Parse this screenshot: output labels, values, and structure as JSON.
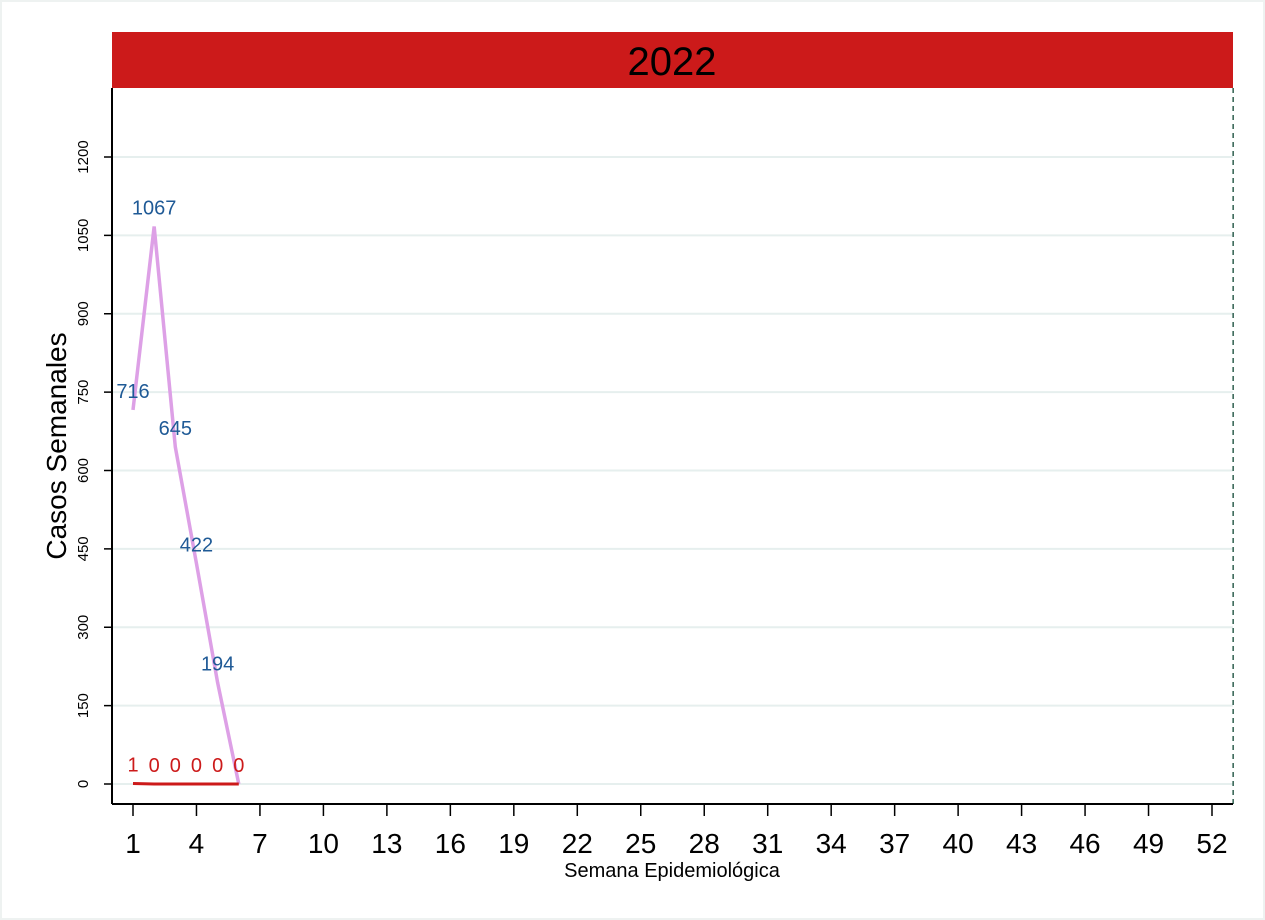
{
  "chart_data": {
    "type": "line",
    "title": "2022",
    "xlabel": "Semana Epidemiológica",
    "ylabel": "Casos Semanales",
    "xlim": [
      1,
      53
    ],
    "ylim": [
      0,
      1250
    ],
    "x_ticks": [
      1,
      4,
      7,
      10,
      13,
      16,
      19,
      22,
      25,
      28,
      31,
      34,
      37,
      40,
      43,
      46,
      49,
      52
    ],
    "y_ticks": [
      0,
      150,
      300,
      450,
      600,
      750,
      900,
      1050,
      1200
    ],
    "grid": "horizontal",
    "reference_line_x": 53,
    "series": [
      {
        "x": [
          1,
          2,
          3,
          4,
          5,
          6
        ],
        "values": [
          716,
          1067,
          645,
          422,
          194,
          0
        ],
        "labels": [
          "716",
          "1067",
          "645",
          "422",
          "194",
          ""
        ],
        "color": "#dda0e6",
        "label_color": "#1f5a96"
      },
      {
        "x": [
          1,
          2,
          3,
          4,
          5,
          6
        ],
        "values": [
          1,
          0,
          0,
          0,
          0,
          0
        ],
        "labels": [
          "1",
          "0",
          "0",
          "0",
          "0",
          "0"
        ],
        "color": "#cc1a1a",
        "label_color": "#cc1a1a"
      }
    ]
  },
  "colors": {
    "title_bar": "#cc1a1a",
    "title_text": "#ffffff",
    "grid": "#e6efee",
    "reference_line": "#2f5f4f"
  }
}
